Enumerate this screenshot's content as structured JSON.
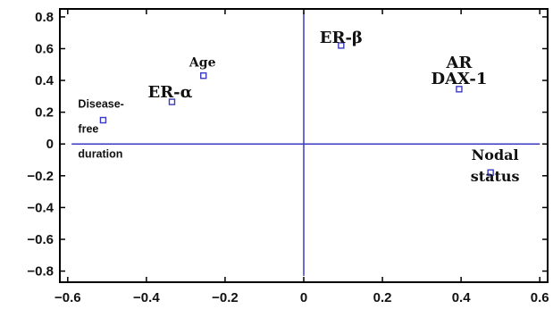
{
  "chart_data": {
    "type": "scatter",
    "title": "",
    "xlabel": "",
    "ylabel": "",
    "xlim": [
      -0.62,
      0.62
    ],
    "ylim": [
      -0.87,
      0.85
    ],
    "xticks": [
      -0.6,
      -0.4,
      -0.2,
      0,
      0.2,
      0.4,
      0.6
    ],
    "yticks": [
      0.8,
      0.6,
      0.4,
      0.2,
      0,
      -0.2,
      -0.4,
      -0.6,
      -0.8
    ],
    "xtick_labels": [
      "−0.6",
      "−0.4",
      "−0.2",
      "0",
      "0.2",
      "0.4",
      "0.6"
    ],
    "ytick_labels": [
      "0.8",
      "0.6",
      "0.4",
      "0.2",
      "0",
      "−0.2",
      "−0.4",
      "−0.6",
      "−0.8"
    ],
    "grid": false,
    "reference_lines": {
      "x": 0,
      "y": 0
    },
    "marker_color": "#3a3ac0",
    "points": [
      {
        "label": "Disease-free duration",
        "label_lines": [
          "Disease-",
          "free",
          "duration"
        ],
        "x": -0.51,
        "y": 0.15
      },
      {
        "label": "ER-α",
        "label_lines": [
          "ER-α"
        ],
        "x": -0.335,
        "y": 0.265
      },
      {
        "label": "Age",
        "label_lines": [
          "Age"
        ],
        "x": -0.255,
        "y": 0.43
      },
      {
        "label": "ER-β",
        "label_lines": [
          "ER-β"
        ],
        "x": 0.095,
        "y": 0.62
      },
      {
        "label": "AR",
        "label_lines": [
          "AR"
        ],
        "x": 0.395,
        "y": 0.345
      },
      {
        "label": "DAX-1",
        "label_lines": [
          "DAX-1"
        ],
        "x": 0.395,
        "y": 0.345
      },
      {
        "label": "Nodal status",
        "label_lines": [
          "Nodal",
          "status"
        ],
        "x": 0.475,
        "y": -0.18
      }
    ]
  }
}
